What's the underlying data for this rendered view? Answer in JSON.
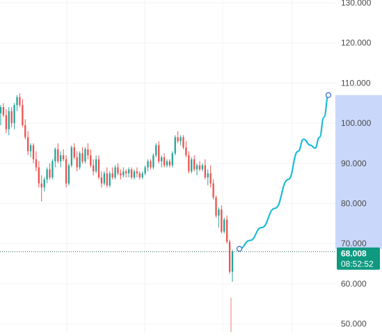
{
  "chart_data": {
    "type": "candlestick",
    "y_axis": {
      "ticks": [
        "130.000",
        "120.000",
        "110.000",
        "100.000",
        "90.000",
        "80.000",
        "70.000",
        "60.000",
        "50.000"
      ],
      "tick_values": [
        130,
        120,
        110,
        100,
        90,
        80,
        70,
        60,
        50
      ],
      "range": [
        48,
        131
      ]
    },
    "colors": {
      "up": "#26a69a",
      "down": "#ef5350",
      "projection": "#1cbbd6",
      "projection_band": "#c9d8fa",
      "price_badge": "#0e9981",
      "grid": "#f0f2f5",
      "dotted_line": "#1f5f52"
    },
    "current_price": {
      "value": 68.008,
      "label": "68.008",
      "countdown": "08:52:52"
    },
    "projection_range": {
      "low": 68.7,
      "high": 107
    },
    "projection_path": [
      [
        0,
        68.7
      ],
      [
        0.12,
        70.8
      ],
      [
        0.25,
        74
      ],
      [
        0.4,
        78.8
      ],
      [
        0.55,
        86
      ],
      [
        0.66,
        93
      ],
      [
        0.72,
        96
      ],
      [
        0.8,
        94.5
      ],
      [
        0.85,
        93.8
      ],
      [
        0.9,
        96.5
      ],
      [
        0.95,
        101.5
      ],
      [
        1,
        107
      ]
    ],
    "candles": [
      [
        102.5,
        104.5,
        99.5,
        104
      ],
      [
        104,
        105,
        101.5,
        102
      ],
      [
        102,
        103.5,
        97.5,
        98.5
      ],
      [
        98.5,
        104,
        97,
        103
      ],
      [
        103,
        104,
        99,
        100
      ],
      [
        100,
        105,
        98.5,
        104.5
      ],
      [
        104.5,
        107,
        103,
        106.5
      ],
      [
        106.5,
        107.5,
        104,
        104.5
      ],
      [
        104.5,
        106,
        99,
        99.5
      ],
      [
        99.5,
        101,
        96,
        96.5
      ],
      [
        96.5,
        98,
        92,
        93
      ],
      [
        93,
        95,
        91.5,
        94.5
      ],
      [
        94.5,
        95,
        90,
        91
      ],
      [
        91,
        93,
        88,
        89
      ],
      [
        89,
        90.5,
        84,
        85
      ],
      [
        85,
        87,
        80.5,
        84
      ],
      [
        84,
        86.5,
        83,
        86
      ],
      [
        86,
        89,
        85,
        88.5
      ],
      [
        88.5,
        90,
        86,
        86.5
      ],
      [
        86.5,
        91,
        86,
        90.5
      ],
      [
        90.5,
        94,
        89,
        93.5
      ],
      [
        93.5,
        95,
        90,
        90.5
      ],
      [
        90.5,
        93,
        89,
        92
      ],
      [
        92,
        93.5,
        90.5,
        91
      ],
      [
        91,
        92,
        84,
        85
      ],
      [
        85,
        90,
        84.5,
        89.5
      ],
      [
        89.5,
        94.5,
        89,
        94
      ],
      [
        94,
        95,
        91,
        91.5
      ],
      [
        91.5,
        93,
        88,
        89
      ],
      [
        89,
        93,
        88.5,
        92.5
      ],
      [
        92.5,
        94,
        90,
        90.5
      ],
      [
        90.5,
        94,
        90,
        93.5
      ],
      [
        93.5,
        95,
        91,
        92
      ],
      [
        92,
        93.5,
        89,
        89.5
      ],
      [
        89.5,
        91,
        87,
        88
      ],
      [
        88,
        92,
        87.5,
        91
      ],
      [
        91,
        92,
        86,
        86.5
      ],
      [
        86.5,
        88,
        84,
        85
      ],
      [
        85,
        88,
        84.5,
        87.5
      ],
      [
        87.5,
        89,
        84,
        84.5
      ],
      [
        84.5,
        88,
        84,
        87.5
      ],
      [
        87.5,
        89,
        86,
        86.5
      ],
      [
        86.5,
        89.5,
        86,
        89
      ],
      [
        89,
        90,
        87,
        87.5
      ],
      [
        87.5,
        88.5,
        86,
        87
      ],
      [
        87,
        89,
        86.5,
        88
      ],
      [
        88,
        88.5,
        86.5,
        87.5
      ],
      [
        87.5,
        89,
        86.5,
        88.5
      ],
      [
        88.5,
        89,
        86,
        86.5
      ],
      [
        86.5,
        88.5,
        86,
        88
      ],
      [
        88,
        89,
        86.5,
        87.5
      ],
      [
        87.5,
        88,
        86,
        86.5
      ],
      [
        86.5,
        88,
        86,
        87.5
      ],
      [
        87.5,
        89.5,
        87,
        89
      ],
      [
        89,
        91,
        88,
        90.5
      ],
      [
        90.5,
        91,
        88.5,
        89
      ],
      [
        89,
        92.5,
        88.5,
        92
      ],
      [
        92,
        95,
        91.5,
        94.5
      ],
      [
        94.5,
        95.5,
        90,
        90.5
      ],
      [
        90.5,
        92,
        89,
        91.5
      ],
      [
        91.5,
        92.5,
        89,
        89.5
      ],
      [
        89.5,
        91,
        89,
        90.5
      ],
      [
        90.5,
        91,
        89,
        89.5
      ],
      [
        89.5,
        93,
        89,
        92.5
      ],
      [
        92.5,
        97,
        92,
        96.5
      ],
      [
        96.5,
        98,
        95,
        95.5
      ],
      [
        95.5,
        97,
        94.5,
        96.5
      ],
      [
        96.5,
        97,
        93.5,
        94
      ],
      [
        94,
        95.5,
        91.5,
        92
      ],
      [
        92,
        93,
        87.5,
        88
      ],
      [
        88,
        91.5,
        87.5,
        91
      ],
      [
        91,
        92,
        88,
        88.5
      ],
      [
        88.5,
        90,
        87,
        89.5
      ],
      [
        89.5,
        90.5,
        88,
        88.5
      ],
      [
        88.5,
        90,
        88,
        89.5
      ],
      [
        89.5,
        91,
        86,
        86.5
      ],
      [
        86.5,
        88.5,
        84.5,
        87.5
      ],
      [
        87.5,
        89.5,
        84,
        85
      ],
      [
        85,
        86,
        81,
        81.5
      ],
      [
        81.5,
        82,
        76.5,
        77
      ],
      [
        77,
        79,
        74,
        78.5
      ],
      [
        78.5,
        79.5,
        72.5,
        73
      ],
      [
        73,
        76.5,
        72.5,
        76
      ],
      [
        76,
        77,
        70,
        70.5
      ],
      [
        70.5,
        71,
        62.5,
        63
      ],
      [
        63,
        68.5,
        60.5,
        68
      ]
    ],
    "gap_candle": {
      "open": 56.5,
      "high": 56.5,
      "low": 48,
      "close": 48
    }
  }
}
